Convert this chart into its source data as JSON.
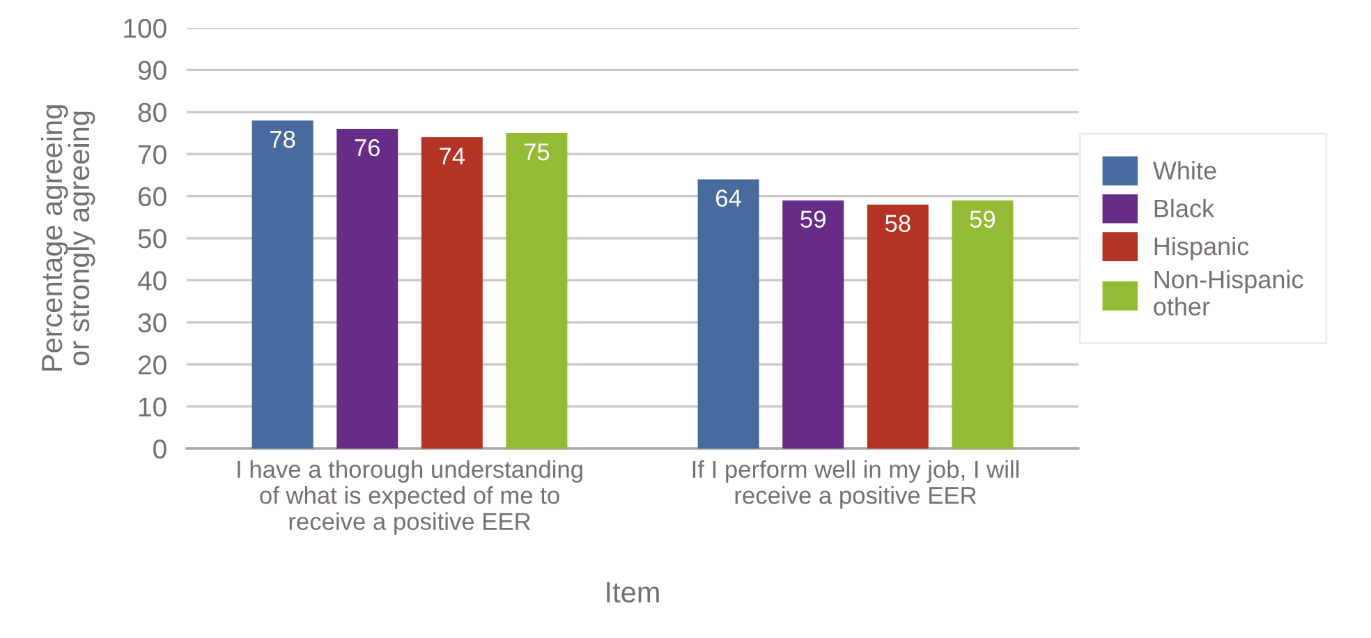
{
  "chart_data": {
    "type": "bar",
    "xlabel": "Item",
    "ylabel": "Percentage agreeing\nor strongly agreeing",
    "categories": [
      "I have a thorough understanding\nof what is expected of me to\nreceive a positive EER",
      "If I perform well in my job, I will\nreceive a positive EER"
    ],
    "series": [
      {
        "name": "White",
        "color": "#476b9e",
        "values": [
          78,
          64
        ]
      },
      {
        "name": "Black",
        "color": "#672c87",
        "values": [
          76,
          59
        ]
      },
      {
        "name": "Hispanic",
        "color": "#b33424",
        "values": [
          74,
          58
        ]
      },
      {
        "name": "Non-Hispanic\nother",
        "color": "#94bb35",
        "values": [
          75,
          59
        ]
      }
    ],
    "ylim": [
      0,
      100
    ],
    "yticks": [
      0,
      10,
      20,
      30,
      40,
      50,
      60,
      70,
      80,
      90,
      100
    ],
    "grid": "y",
    "legend": "right",
    "data_labels": true
  }
}
